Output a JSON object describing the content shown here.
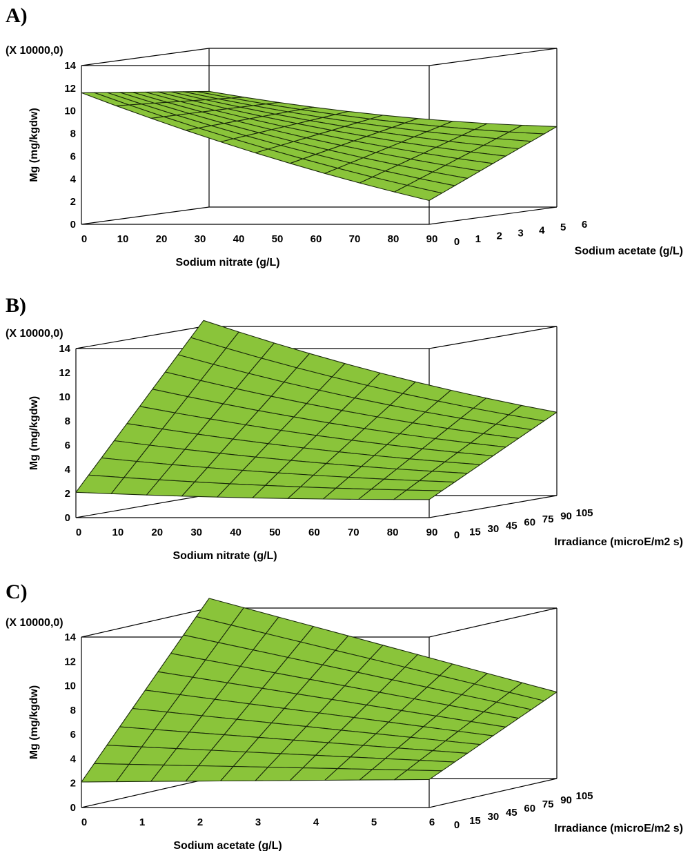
{
  "chart_data": [
    {
      "type": "surface",
      "panel_label": "A)",
      "scale_note": "(X 10000,0)",
      "zlabel": "Mg (mg/kgdw)",
      "xlabel": "Sodium nitrate (g/L)",
      "ylabel": "Sodium acetate (g/L)",
      "z_ticks": [
        "0",
        "2",
        "4",
        "6",
        "8",
        "10",
        "12",
        "14"
      ],
      "x_ticks": [
        "0",
        "10",
        "20",
        "30",
        "40",
        "50",
        "60",
        "70",
        "80",
        "90"
      ],
      "y_ticks": [
        "0",
        "1",
        "2",
        "3",
        "4",
        "5",
        "6"
      ],
      "xlim": [
        0,
        90
      ],
      "ylim": [
        0,
        6
      ],
      "zlim": [
        0,
        14
      ],
      "corner_values": {
        "x0_y0": 11.6,
        "x90_y0": 2.1,
        "x0_y6": 10.2,
        "x90_y6": 7.1
      },
      "surface_color": "#8ac43a"
    },
    {
      "type": "surface",
      "panel_label": "B)",
      "scale_note": "(X 10000,0)",
      "zlabel": "Mg (mg/kgdw)",
      "xlabel": "Sodium nitrate (g/L)",
      "ylabel": "Irradiance (microE/m2 s)",
      "z_ticks": [
        "0",
        "2",
        "4",
        "6",
        "8",
        "10",
        "12",
        "14"
      ],
      "x_ticks": [
        "0",
        "10",
        "20",
        "30",
        "40",
        "50",
        "60",
        "70",
        "80",
        "90"
      ],
      "y_ticks": [
        "0",
        "15",
        "30",
        "45",
        "60",
        "75",
        "90",
        "105"
      ],
      "xlim": [
        0,
        90
      ],
      "ylim": [
        0,
        105
      ],
      "zlim": [
        0,
        14
      ],
      "corner_values": {
        "x0_y0": 2.1,
        "x90_y0": 1.5,
        "x0_y105": 14.5,
        "x90_y105": 6.9
      },
      "surface_color": "#8ac43a"
    },
    {
      "type": "surface",
      "panel_label": "C)",
      "scale_note": "(X 10000,0)",
      "zlabel": "Mg (mg/kgdw)",
      "xlabel": "Sodium acetate (g/L)",
      "ylabel": "Irradiance (microE/m2 s)",
      "z_ticks": [
        "0",
        "2",
        "4",
        "6",
        "8",
        "10",
        "12",
        "14"
      ],
      "x_ticks": [
        "0",
        "1",
        "2",
        "3",
        "4",
        "5",
        "6"
      ],
      "y_ticks": [
        "0",
        "15",
        "30",
        "45",
        "60",
        "75",
        "90",
        "105"
      ],
      "xlim": [
        0,
        6
      ],
      "ylim": [
        0,
        105
      ],
      "zlim": [
        0,
        14
      ],
      "corner_values": {
        "x0_y0": 2.1,
        "x6_y0": 2.3,
        "x0_y105": 14.8,
        "x6_y105": 7.1
      },
      "surface_color": "#8ac43a"
    }
  ]
}
